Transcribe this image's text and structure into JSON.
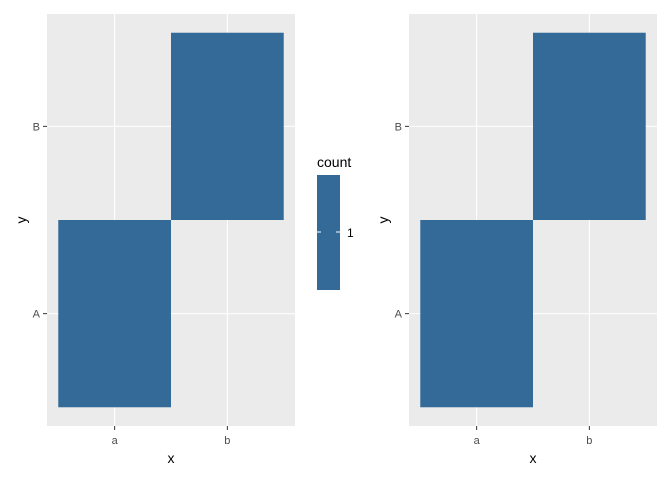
{
  "chart_data": [
    {
      "type": "heatmap",
      "xlabel": "x",
      "ylabel": "y",
      "x_categories": [
        "a",
        "b"
      ],
      "y_categories": [
        "A",
        "B"
      ],
      "cells": [
        {
          "x": "a",
          "y": "A",
          "count": 1
        },
        {
          "x": "b",
          "y": "B",
          "count": 1
        }
      ],
      "grid": true,
      "fill_color": "#336A98"
    },
    {
      "type": "heatmap",
      "xlabel": "x",
      "ylabel": "y",
      "x_categories": [
        "a",
        "b"
      ],
      "y_categories": [
        "A",
        "B"
      ],
      "cells": [
        {
          "x": "a",
          "y": "A",
          "count": 1
        },
        {
          "x": "b",
          "y": "B",
          "count": 1
        }
      ],
      "grid": true,
      "fill_color": "#336A98"
    }
  ],
  "legend": {
    "title": "count",
    "tick_labels": [
      "1"
    ],
    "color": "#336A98",
    "placement": "between panels"
  },
  "theme": {
    "panel_background": "#EBEBEB",
    "grid_color": "#FFFFFF",
    "text_color": "#4D4D4D",
    "title_color": "#000000"
  }
}
